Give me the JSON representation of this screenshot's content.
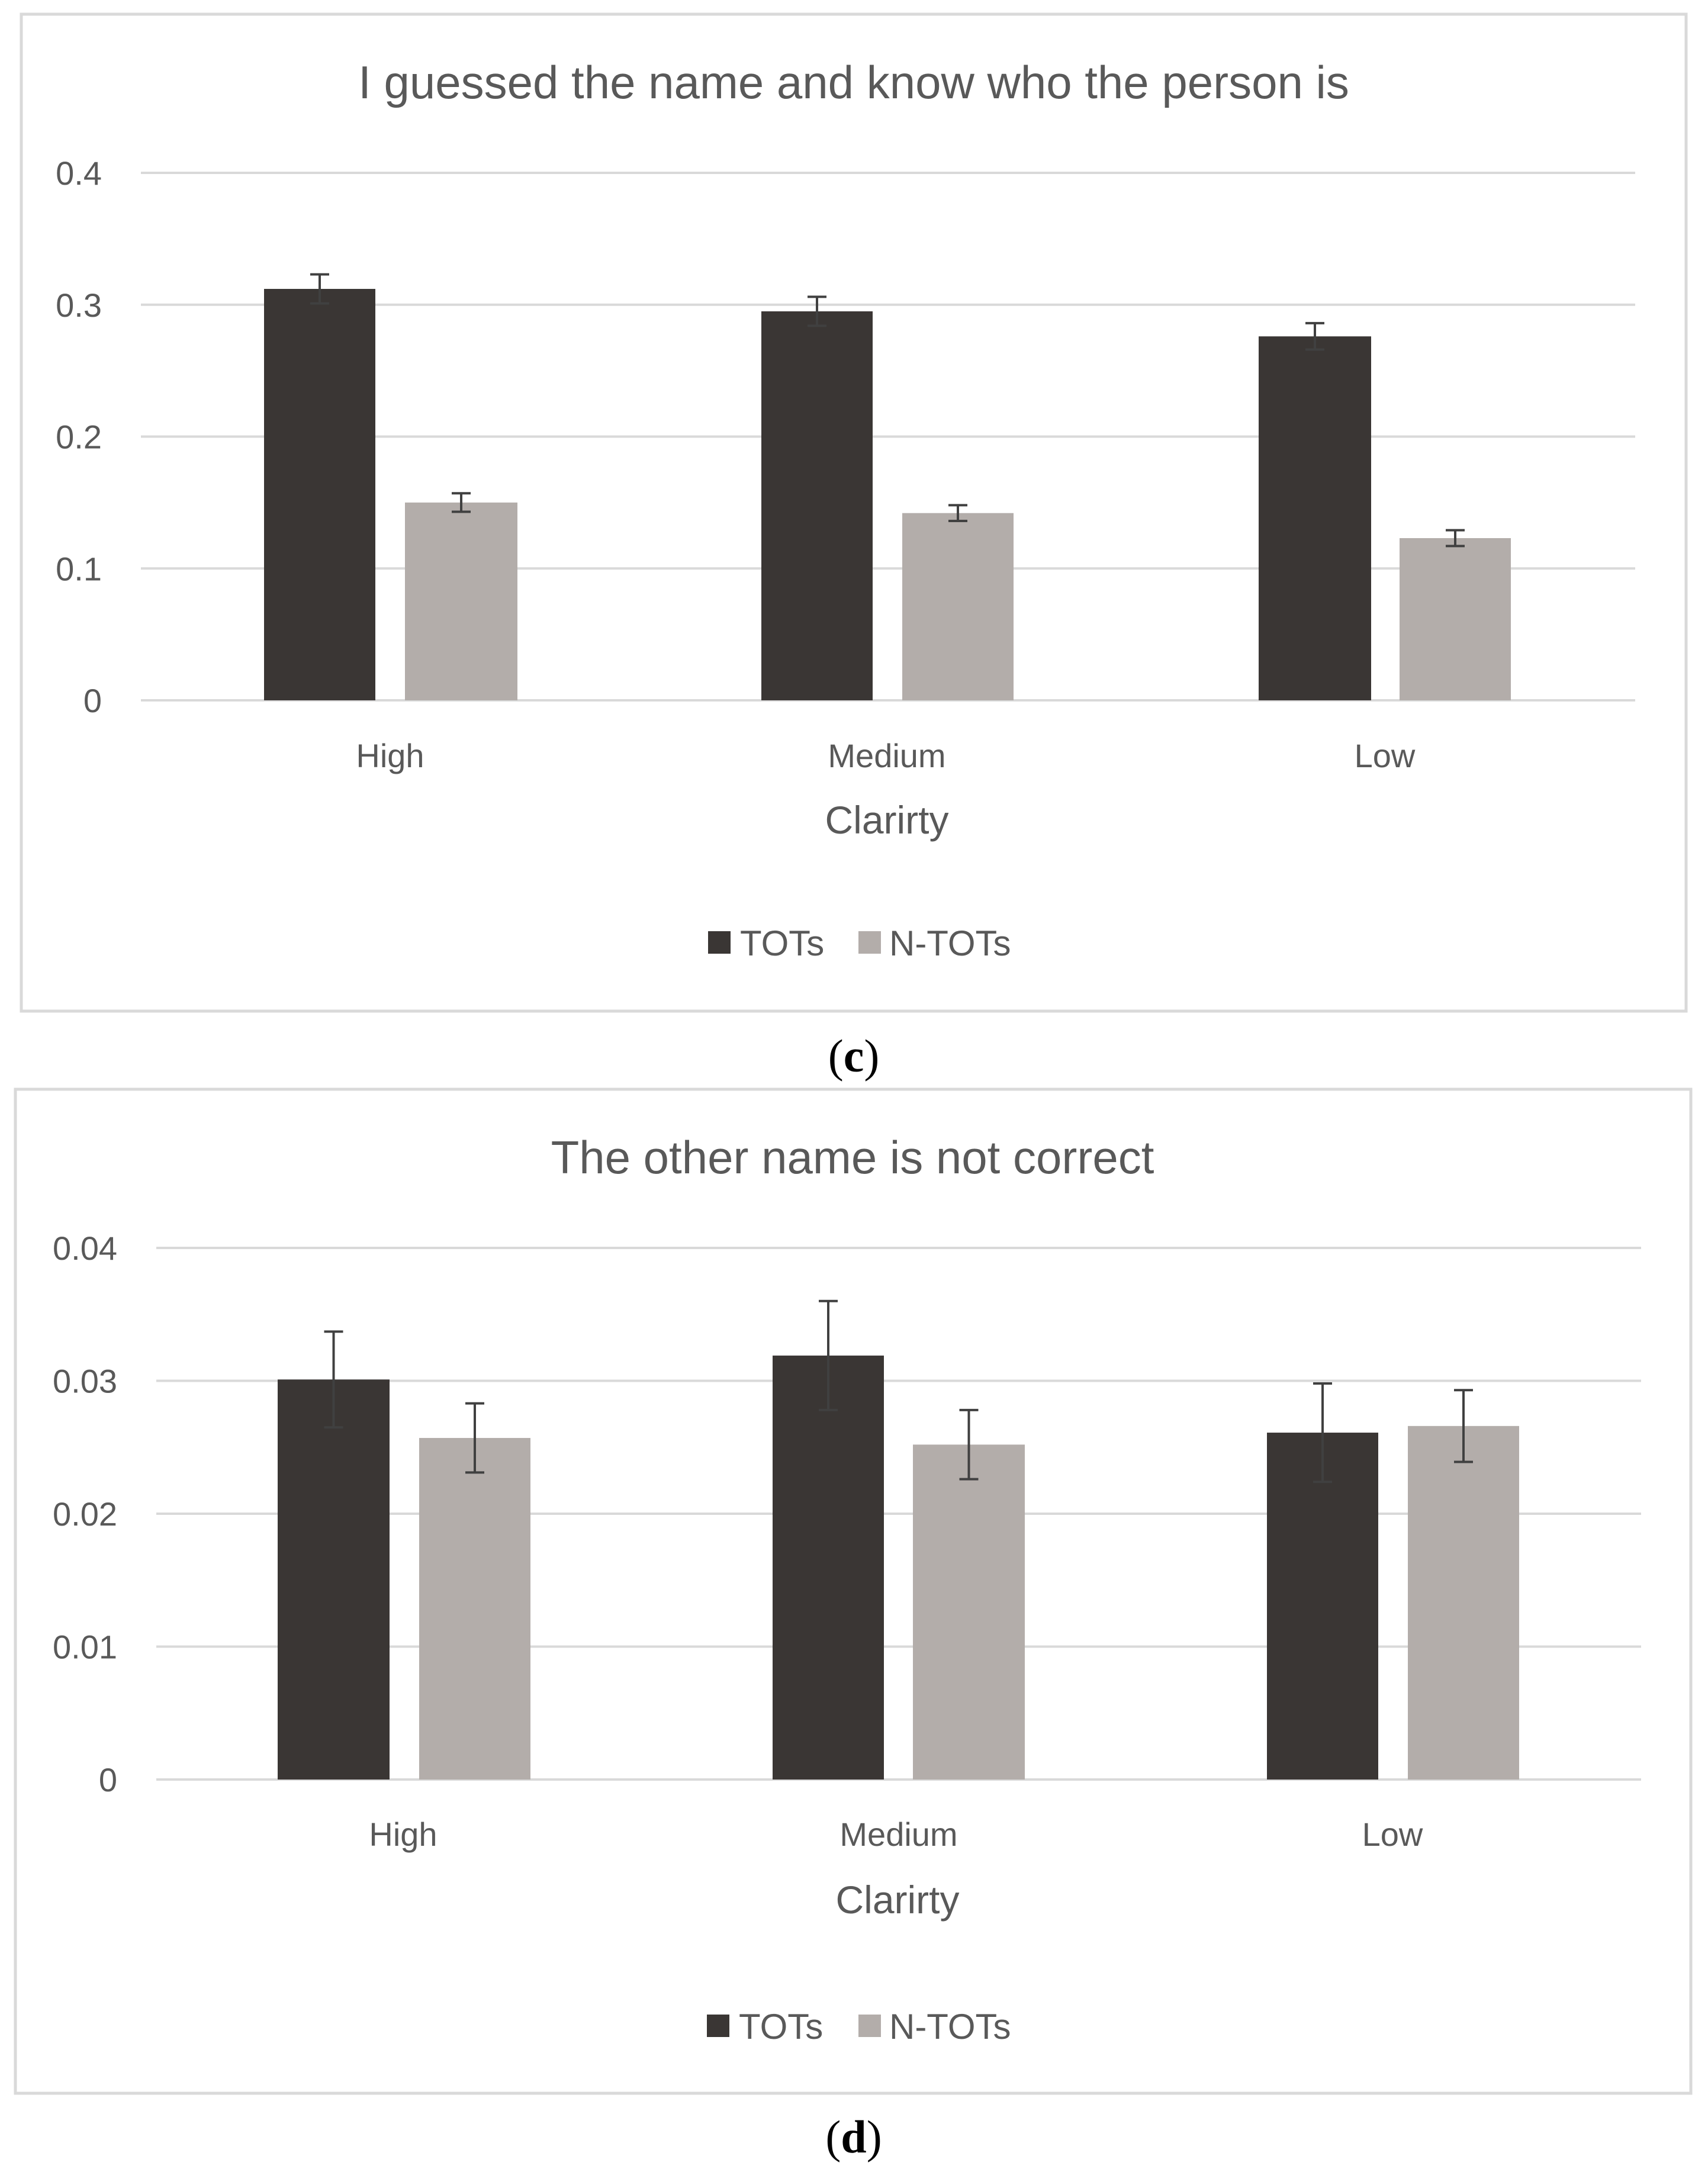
{
  "colors": {
    "tots": "#3a3634",
    "ntots": "#b3adaa",
    "grid": "#d9d9d9",
    "text": "#595959",
    "frame": "#d9d9d9",
    "error": "#404040"
  },
  "chart_data": [
    {
      "type": "bar",
      "panel_label": {
        "open": "(",
        "letter": "c",
        "close": ")"
      },
      "title": "I guessed the name and know who the person is",
      "xlabel": "Clarirty",
      "ylabel": "",
      "categories": [
        "High",
        "Medium",
        "Low"
      ],
      "ylim": [
        0,
        0.4
      ],
      "yticks": [
        0,
        0.1,
        0.2,
        0.3,
        0.4
      ],
      "ytick_labels": [
        "0",
        "0.1",
        "0.2",
        "0.3",
        "0.4"
      ],
      "legend_position": "bottom",
      "series": [
        {
          "name": "TOTs",
          "color_key": "tots",
          "values": [
            0.312,
            0.295,
            0.276
          ],
          "errors": [
            0.011,
            0.011,
            0.01
          ]
        },
        {
          "name": "N-TOTs",
          "color_key": "ntots",
          "values": [
            0.15,
            0.142,
            0.123
          ],
          "errors": [
            0.007,
            0.006,
            0.006
          ]
        }
      ]
    },
    {
      "type": "bar",
      "panel_label": {
        "open": "(",
        "letter": "d",
        "close": ")"
      },
      "title": "The other name is not correct",
      "xlabel": "Clarirty",
      "ylabel": "",
      "categories": [
        "High",
        "Medium",
        "Low"
      ],
      "ylim": [
        0,
        0.04
      ],
      "yticks": [
        0,
        0.01,
        0.02,
        0.03,
        0.04
      ],
      "ytick_labels": [
        "0",
        "0.01",
        "0.02",
        "0.03",
        "0.04"
      ],
      "legend_position": "bottom",
      "series": [
        {
          "name": "TOTs",
          "color_key": "tots",
          "values": [
            0.0301,
            0.0319,
            0.0261
          ],
          "errors": [
            0.0036,
            0.0041,
            0.0037
          ]
        },
        {
          "name": "N-TOTs",
          "color_key": "ntots",
          "values": [
            0.0257,
            0.0252,
            0.0266
          ],
          "errors": [
            0.0026,
            0.0026,
            0.0027
          ]
        }
      ]
    }
  ]
}
